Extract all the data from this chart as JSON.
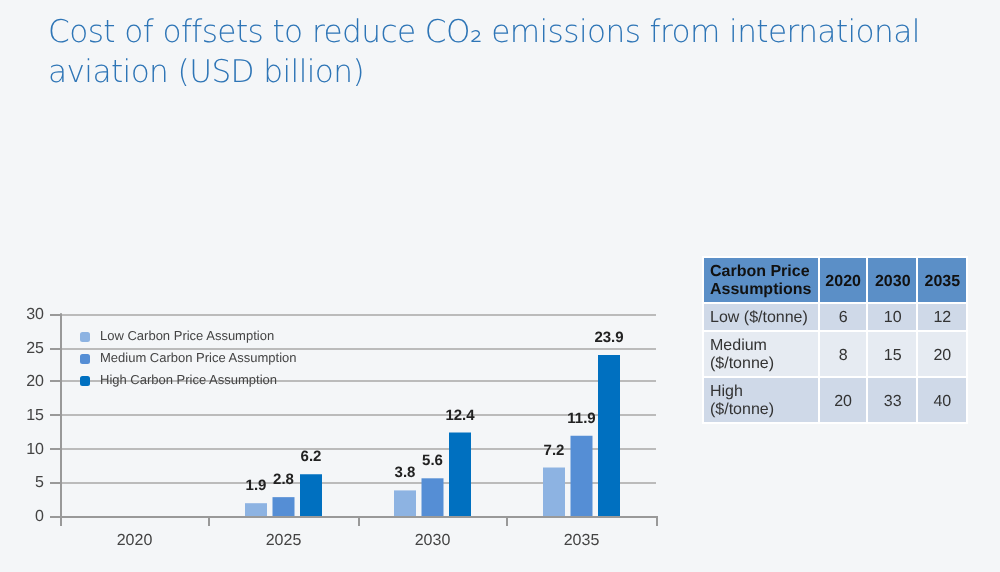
{
  "chart_data": [
    {
      "type": "bar",
      "title": "Cost of offsets to reduce CO₂ emissions from international aviation (USD billion)",
      "categories": [
        "2020",
        "2025",
        "2030",
        "2035"
      ],
      "series": [
        {
          "name": "Low Carbon Price Assumption",
          "color": "#8db3e2",
          "values": [
            null,
            1.9,
            3.8,
            7.2
          ]
        },
        {
          "name": "Medium Carbon Price Assumption",
          "color": "#558ed5",
          "values": [
            null,
            2.8,
            5.6,
            11.9
          ]
        },
        {
          "name": "High Carbon Price Assumption",
          "color": "#0070c0",
          "values": [
            null,
            6.2,
            12.4,
            23.9
          ]
        }
      ],
      "ylim": [
        0,
        30
      ],
      "yticks": [
        0,
        5,
        10,
        15,
        20,
        25,
        30
      ],
      "grid": "y",
      "legend": "top left",
      "data_labels": true
    },
    {
      "type": "other",
      "title": "Carbon Price Assumptions",
      "categories": [
        "2020",
        "2030",
        "2035"
      ],
      "y_categories": [
        "Low ($/tonne)",
        "Medium ($/tonne)",
        "High ($/tonne)"
      ],
      "cell_labels": [
        [
          "6",
          "10",
          "12"
        ],
        [
          "8",
          "15",
          "20"
        ],
        [
          "20",
          "33",
          "40"
        ]
      ]
    }
  ]
}
